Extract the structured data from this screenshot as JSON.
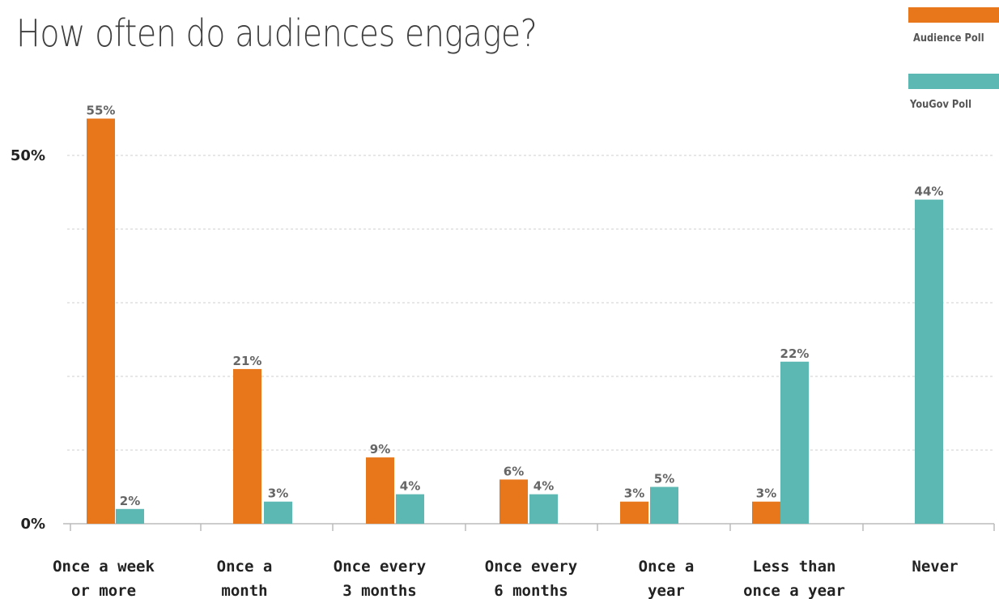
{
  "chart_data": {
    "type": "bar",
    "title": "How often do audiences engage?",
    "categories": [
      [
        "Once a week",
        "or more"
      ],
      [
        "Once a",
        "month"
      ],
      [
        "Once every",
        "3 months"
      ],
      [
        "Once every",
        "6 months"
      ],
      [
        "Once a",
        "year"
      ],
      [
        "Less than",
        "once a year"
      ],
      [
        "Never"
      ]
    ],
    "series": [
      {
        "name": "Audience Poll",
        "color": "#e8761b",
        "values": [
          55,
          21,
          9,
          6,
          3,
          3,
          null
        ],
        "labels": [
          "55%",
          "21%",
          "9%",
          "6%",
          "3%",
          "3%",
          ""
        ]
      },
      {
        "name": "YouGov Poll",
        "color": "#5cb8b2",
        "values": [
          2,
          3,
          4,
          4,
          5,
          22,
          44
        ],
        "labels": [
          "2%",
          "3%",
          "4%",
          "4%",
          "5%",
          "22%",
          "44%"
        ]
      }
    ],
    "ylim": [
      0,
      60
    ],
    "yticks": [
      {
        "value": 0,
        "label": "0%"
      },
      {
        "value": 50,
        "label": "50%"
      }
    ],
    "gridlines": [
      10,
      20,
      30,
      40,
      50
    ],
    "grid": true,
    "legend_position": "top-right"
  }
}
